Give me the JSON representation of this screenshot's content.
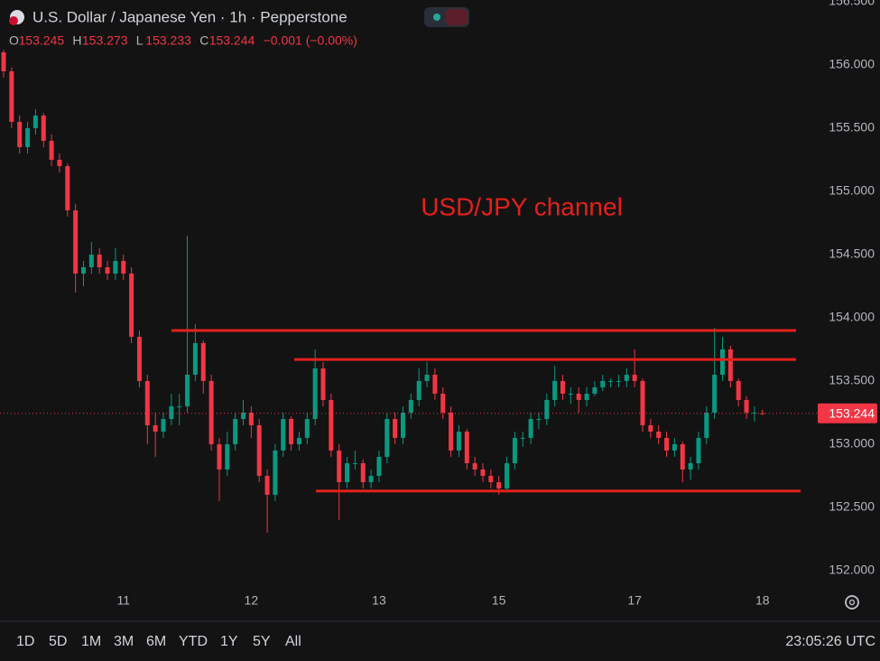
{
  "header": {
    "title": "U.S. Dollar / Japanese Yen · 1h · Pepperstone",
    "ohlc": [
      {
        "key": "O",
        "value": "153.245"
      },
      {
        "key": "H",
        "value": "153.273"
      },
      {
        "key": "L",
        "value": "153.233"
      },
      {
        "key": "C",
        "value": "153.244"
      }
    ],
    "change": "−0.001 (−0.00%)"
  },
  "chart_data": {
    "type": "candlestick",
    "annotation": "USD/JPY channel",
    "channel_levels": [
      153.9,
      153.67,
      152.63
    ],
    "categories": [
      null,
      null,
      null,
      null,
      null,
      null,
      null,
      null,
      null,
      null,
      null,
      null,
      null,
      null,
      null,
      "11",
      null,
      null,
      null,
      null,
      null,
      null,
      null,
      null,
      null,
      null,
      null,
      null,
      null,
      null,
      null,
      "12",
      null,
      null,
      null,
      null,
      null,
      null,
      null,
      null,
      null,
      null,
      null,
      null,
      null,
      null,
      null,
      "13",
      null,
      null,
      null,
      null,
      null,
      null,
      null,
      null,
      null,
      null,
      null,
      null,
      null,
      null,
      "15",
      null,
      null,
      null,
      null,
      null,
      null,
      null,
      null,
      null,
      null,
      null,
      null,
      null,
      null,
      null,
      null,
      "17",
      null,
      null,
      null,
      null,
      null,
      null,
      null,
      null,
      null,
      null,
      null,
      null,
      null,
      null,
      null,
      "18"
    ],
    "series": [
      {
        "up_color": "#089981",
        "down_color": "#f23645",
        "ohlc": [
          [
            156.1,
            156.12,
            155.9,
            155.95
          ],
          [
            155.95,
            155.98,
            155.5,
            155.55
          ],
          [
            155.55,
            155.6,
            155.3,
            155.35
          ],
          [
            155.35,
            155.55,
            155.3,
            155.5
          ],
          [
            155.5,
            155.65,
            155.45,
            155.6
          ],
          [
            155.6,
            155.62,
            155.35,
            155.4
          ],
          [
            155.4,
            155.45,
            155.2,
            155.25
          ],
          [
            155.25,
            155.3,
            155.15,
            155.2
          ],
          [
            155.2,
            155.22,
            154.8,
            154.85
          ],
          [
            154.85,
            154.9,
            154.2,
            154.35
          ],
          [
            154.35,
            154.45,
            154.25,
            154.4
          ],
          [
            154.4,
            154.6,
            154.35,
            154.5
          ],
          [
            154.5,
            154.55,
            154.35,
            154.4
          ],
          [
            154.4,
            154.45,
            154.3,
            154.35
          ],
          [
            154.35,
            154.55,
            154.3,
            154.45
          ],
          [
            154.45,
            154.5,
            154.3,
            154.35
          ],
          [
            154.35,
            154.4,
            153.8,
            153.85
          ],
          [
            153.85,
            153.9,
            153.45,
            153.5
          ],
          [
            153.5,
            153.55,
            153.0,
            153.15
          ],
          [
            153.15,
            153.25,
            152.9,
            153.1
          ],
          [
            153.1,
            153.25,
            153.05,
            153.2
          ],
          [
            153.2,
            153.4,
            153.15,
            153.3
          ],
          [
            153.3,
            153.4,
            153.15,
            153.3
          ],
          [
            153.3,
            154.65,
            153.25,
            153.55
          ],
          [
            153.55,
            153.95,
            153.5,
            153.8
          ],
          [
            153.8,
            153.82,
            153.4,
            153.5
          ],
          [
            153.5,
            153.55,
            152.95,
            153.0
          ],
          [
            153.0,
            153.05,
            152.55,
            152.8
          ],
          [
            152.8,
            153.1,
            152.75,
            153.0
          ],
          [
            153.0,
            153.25,
            152.95,
            153.2
          ],
          [
            153.2,
            153.35,
            153.15,
            153.25
          ],
          [
            153.25,
            153.3,
            153.05,
            153.15
          ],
          [
            153.15,
            153.2,
            152.7,
            152.75
          ],
          [
            152.75,
            152.8,
            152.3,
            152.6
          ],
          [
            152.6,
            153.0,
            152.55,
            152.95
          ],
          [
            152.95,
            153.25,
            152.9,
            153.2
          ],
          [
            153.2,
            153.22,
            152.95,
            153.0
          ],
          [
            153.0,
            153.1,
            152.95,
            153.05
          ],
          [
            153.05,
            153.25,
            153.0,
            153.2
          ],
          [
            153.2,
            153.75,
            153.15,
            153.6
          ],
          [
            153.6,
            153.65,
            153.3,
            153.35
          ],
          [
            153.35,
            153.4,
            152.9,
            152.95
          ],
          [
            152.95,
            153.0,
            152.4,
            152.7
          ],
          [
            152.7,
            152.9,
            152.65,
            152.85
          ],
          [
            152.85,
            152.95,
            152.8,
            152.85
          ],
          [
            152.85,
            152.88,
            152.65,
            152.7
          ],
          [
            152.7,
            152.8,
            152.65,
            152.75
          ],
          [
            152.75,
            152.95,
            152.7,
            152.9
          ],
          [
            152.9,
            153.25,
            152.85,
            153.2
          ],
          [
            153.2,
            153.25,
            153.0,
            153.05
          ],
          [
            153.05,
            153.3,
            153.0,
            153.25
          ],
          [
            153.25,
            153.4,
            153.2,
            153.35
          ],
          [
            153.35,
            153.6,
            153.3,
            153.5
          ],
          [
            153.5,
            153.65,
            153.45,
            153.55
          ],
          [
            153.55,
            153.6,
            153.35,
            153.4
          ],
          [
            153.4,
            153.45,
            153.2,
            153.25
          ],
          [
            153.25,
            153.3,
            152.9,
            152.95
          ],
          [
            152.95,
            153.15,
            152.9,
            153.1
          ],
          [
            153.1,
            153.12,
            152.8,
            152.85
          ],
          [
            152.85,
            152.9,
            152.75,
            152.8
          ],
          [
            152.8,
            152.85,
            152.7,
            152.75
          ],
          [
            152.75,
            152.8,
            152.65,
            152.7
          ],
          [
            152.7,
            152.75,
            152.6,
            152.65
          ],
          [
            152.65,
            152.9,
            152.62,
            152.85
          ],
          [
            152.85,
            153.1,
            152.8,
            153.05
          ],
          [
            153.05,
            153.1,
            152.98,
            153.05
          ],
          [
            153.05,
            153.25,
            153.0,
            153.2
          ],
          [
            153.2,
            153.25,
            153.12,
            153.2
          ],
          [
            153.2,
            153.4,
            153.15,
            153.35
          ],
          [
            153.35,
            153.62,
            153.3,
            153.5
          ],
          [
            153.5,
            153.55,
            153.35,
            153.4
          ],
          [
            153.4,
            153.45,
            153.32,
            153.4
          ],
          [
            153.4,
            153.45,
            153.25,
            153.35
          ],
          [
            153.35,
            153.45,
            153.3,
            153.4
          ],
          [
            153.4,
            153.5,
            153.38,
            153.45
          ],
          [
            153.45,
            153.55,
            153.42,
            153.5
          ],
          [
            153.5,
            153.52,
            153.45,
            153.5
          ],
          [
            153.5,
            153.55,
            153.45,
            153.5
          ],
          [
            153.5,
            153.6,
            153.45,
            153.55
          ],
          [
            153.55,
            153.75,
            153.45,
            153.5
          ],
          [
            153.5,
            153.52,
            153.1,
            153.15
          ],
          [
            153.15,
            153.2,
            153.05,
            153.1
          ],
          [
            153.1,
            153.15,
            153.0,
            153.05
          ],
          [
            153.05,
            153.1,
            152.9,
            152.95
          ],
          [
            152.95,
            153.05,
            152.9,
            153.0
          ],
          [
            153.0,
            153.02,
            152.7,
            152.8
          ],
          [
            152.8,
            152.9,
            152.72,
            152.85
          ],
          [
            152.85,
            153.1,
            152.8,
            153.05
          ],
          [
            153.05,
            153.3,
            153.0,
            153.25
          ],
          [
            153.25,
            153.92,
            153.2,
            153.55
          ],
          [
            153.55,
            153.85,
            153.5,
            153.75
          ],
          [
            153.75,
            153.78,
            153.45,
            153.5
          ],
          [
            153.5,
            153.52,
            153.3,
            153.35
          ],
          [
            153.35,
            153.38,
            153.2,
            153.25
          ],
          [
            153.25,
            153.3,
            153.18,
            153.25
          ],
          [
            153.245,
            153.273,
            153.233,
            153.244
          ]
        ]
      }
    ],
    "last_price": {
      "value": 153.244,
      "label": "153.244"
    },
    "ylim": [
      151.871,
      156.514
    ],
    "yticks": [
      {
        "value": 152,
        "label": "152.000"
      },
      {
        "value": 152.5,
        "label": "152.500"
      },
      {
        "value": 153,
        "label": "153.000"
      },
      {
        "value": 153.5,
        "label": "153.500"
      },
      {
        "value": 154,
        "label": "154.000"
      },
      {
        "value": 154.5,
        "label": "154.500"
      },
      {
        "value": 155,
        "label": "155.000"
      },
      {
        "value": 155.5,
        "label": "155.500"
      },
      {
        "value": 156,
        "label": "156.000"
      },
      {
        "value": 156.5,
        "label": "156.500"
      }
    ]
  },
  "toolbar": {
    "ranges": [
      "1D",
      "5D",
      "1M",
      "3M",
      "6M",
      "YTD",
      "1Y",
      "5Y",
      "All"
    ],
    "clock": "23:05:26 UTC"
  }
}
